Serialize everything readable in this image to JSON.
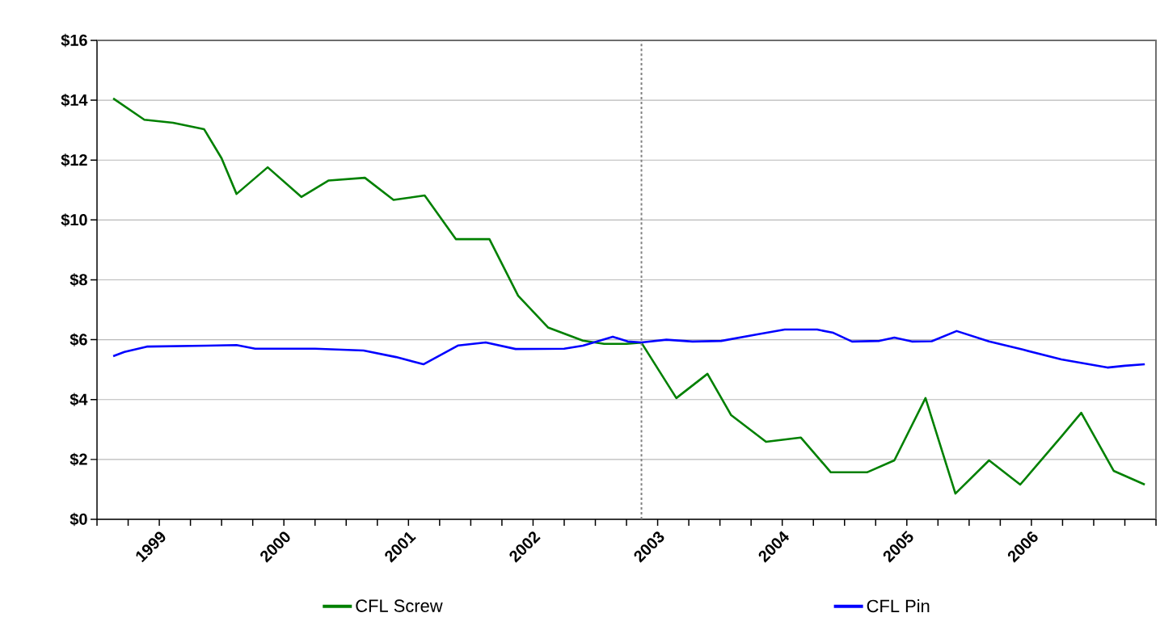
{
  "chart_data": {
    "type": "line",
    "xlim": [
      1998.5,
      2007
    ],
    "ylim": [
      0,
      16
    ],
    "xticks": [
      {
        "value": 1998.5,
        "label": null
      },
      {
        "value": 1998.75,
        "label": null
      },
      {
        "value": 1999,
        "label": "1999"
      },
      {
        "value": 1999.25,
        "label": null
      },
      {
        "value": 1999.5,
        "label": null
      },
      {
        "value": 1999.75,
        "label": null
      },
      {
        "value": 2000,
        "label": "2000"
      },
      {
        "value": 2000.25,
        "label": null
      },
      {
        "value": 2000.5,
        "label": null
      },
      {
        "value": 2000.75,
        "label": null
      },
      {
        "value": 2001,
        "label": "2001"
      },
      {
        "value": 2001.25,
        "label": null
      },
      {
        "value": 2001.5,
        "label": null
      },
      {
        "value": 2001.75,
        "label": null
      },
      {
        "value": 2002,
        "label": "2002"
      },
      {
        "value": 2002.25,
        "label": null
      },
      {
        "value": 2002.5,
        "label": null
      },
      {
        "value": 2002.75,
        "label": null
      },
      {
        "value": 2003,
        "label": "2003"
      },
      {
        "value": 2003.25,
        "label": null
      },
      {
        "value": 2003.5,
        "label": null
      },
      {
        "value": 2003.75,
        "label": null
      },
      {
        "value": 2004,
        "label": "2004"
      },
      {
        "value": 2004.25,
        "label": null
      },
      {
        "value": 2004.5,
        "label": null
      },
      {
        "value": 2004.75,
        "label": null
      },
      {
        "value": 2005,
        "label": "2005"
      },
      {
        "value": 2005.25,
        "label": null
      },
      {
        "value": 2005.5,
        "label": null
      },
      {
        "value": 2005.75,
        "label": null
      },
      {
        "value": 2006,
        "label": "2006"
      },
      {
        "value": 2006.25,
        "label": null
      },
      {
        "value": 2006.5,
        "label": null
      },
      {
        "value": 2006.75,
        "label": null
      },
      {
        "value": 2007,
        "label": null
      }
    ],
    "yticks": [
      {
        "value": 0,
        "label": "$0"
      },
      {
        "value": 2,
        "label": "$2"
      },
      {
        "value": 4,
        "label": "$4"
      },
      {
        "value": 6,
        "label": "$6"
      },
      {
        "value": 8,
        "label": "$8"
      },
      {
        "value": 10,
        "label": "$10"
      },
      {
        "value": 12,
        "label": "$12"
      },
      {
        "value": 14,
        "label": "$14"
      },
      {
        "value": 16,
        "label": "$16"
      }
    ],
    "grid": "y",
    "legend": "bottom",
    "marker": "none",
    "line_style": "solid",
    "ref_lines": [
      {
        "axis": "x",
        "value": 2002.87,
        "label": null,
        "color": "#808080",
        "line_style": "dashed"
      }
    ],
    "series": [
      {
        "name": "CFL Screw",
        "color": "#008000",
        "x": [
          1998.63,
          1998.88,
          1999.11,
          1999.36,
          1999.5,
          1999.62,
          1999.87,
          2000.14,
          2000.36,
          2000.65,
          2000.88,
          2001.13,
          2001.38,
          2001.65,
          2001.88,
          2002.12,
          2002.4,
          2002.57,
          2002.75,
          2002.87,
          2003.15,
          2003.4,
          2003.59,
          2003.87,
          2004.15,
          2004.39,
          2004.68,
          2004.9,
          2005.15,
          2005.39,
          2005.66,
          2005.91,
          2006.24,
          2006.4,
          2006.66,
          2006.91
        ],
        "values": [
          14.06,
          13.35,
          13.25,
          13.03,
          12.06,
          10.87,
          11.76,
          10.77,
          11.32,
          11.41,
          10.67,
          10.82,
          9.36,
          9.36,
          7.47,
          6.41,
          5.97,
          5.86,
          5.86,
          5.9,
          4.05,
          4.86,
          3.48,
          2.59,
          2.73,
          1.57,
          1.57,
          1.97,
          4.05,
          0.86,
          1.97,
          1.16,
          2.76,
          3.56,
          1.62,
          1.16
        ]
      },
      {
        "name": "CFL Pin",
        "color": "#0000ff",
        "x": [
          1998.63,
          1998.72,
          1998.9,
          1999.38,
          1999.62,
          1999.77,
          2000.25,
          2000.64,
          2000.9,
          2001.12,
          2001.4,
          2001.62,
          2001.86,
          2002.25,
          2002.4,
          2002.64,
          2002.76,
          2002.87,
          2003.07,
          2003.28,
          2003.51,
          2003.8,
          2004.02,
          2004.28,
          2004.41,
          2004.56,
          2004.78,
          2004.9,
          2005.04,
          2005.2,
          2005.4,
          2005.66,
          2005.93,
          2006.24,
          2006.61,
          2006.75,
          2006.91
        ],
        "values": [
          5.45,
          5.59,
          5.77,
          5.8,
          5.82,
          5.7,
          5.7,
          5.64,
          5.42,
          5.18,
          5.81,
          5.91,
          5.69,
          5.7,
          5.8,
          6.1,
          5.94,
          5.91,
          6.0,
          5.94,
          5.96,
          6.18,
          6.34,
          6.34,
          6.23,
          5.94,
          5.96,
          6.07,
          5.94,
          5.95,
          6.29,
          5.94,
          5.67,
          5.34,
          5.07,
          5.13,
          5.18
        ]
      }
    ]
  }
}
